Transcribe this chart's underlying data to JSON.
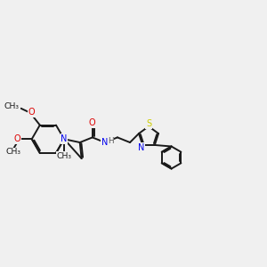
{
  "background_color": "#f0f0f0",
  "bond_color": "#1a1a1a",
  "bond_width": 1.4,
  "atom_colors": {
    "N": "#0000ee",
    "O": "#dd0000",
    "S": "#cccc00",
    "C": "#1a1a1a",
    "H": "#555555"
  },
  "font_size": 7.0,
  "fig_width": 3.0,
  "fig_height": 3.0,
  "dpi": 100,
  "xlim": [
    0.0,
    9.5
  ],
  "ylim": [
    2.5,
    8.0
  ]
}
